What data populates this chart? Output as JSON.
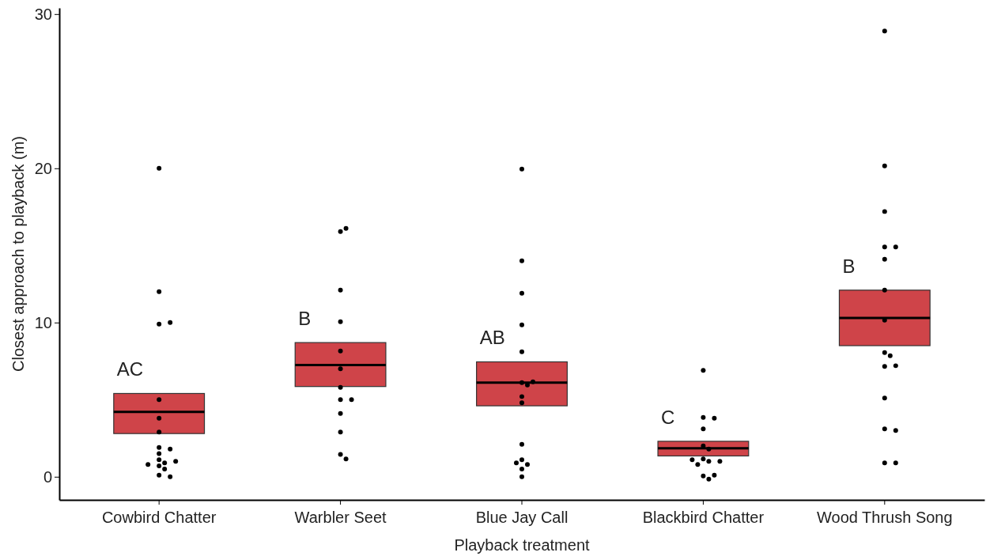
{
  "chart_data": {
    "type": "box",
    "xlabel": "Playback treatment",
    "ylabel": "Closest approach to playback (m)",
    "categories": [
      "Cowbird Chatter",
      "Warbler Seet",
      "Blue Jay Call",
      "Blackbird Chatter",
      "Wood Thrush Song"
    ],
    "ylim": [
      -1.5,
      30.4
    ],
    "yticks": [
      0,
      10,
      20,
      30
    ],
    "series": [
      {
        "color": "#cf4449",
        "boxes": [
          {
            "low": 2.8,
            "q1": 2.8,
            "median": 4.2,
            "q3": 5.4,
            "high": 5.4
          },
          {
            "low": 5.85,
            "q1": 5.85,
            "median": 7.25,
            "q3": 8.7,
            "high": 8.7
          },
          {
            "low": 4.6,
            "q1": 4.6,
            "median": 6.1,
            "q3": 7.45,
            "high": 7.45
          },
          {
            "low": 1.35,
            "q1": 1.35,
            "median": 1.85,
            "q3": 2.3,
            "high": 2.3
          },
          {
            "low": 8.5,
            "q1": 8.5,
            "median": 10.3,
            "q3": 12.1,
            "high": 12.1
          }
        ]
      },
      {
        "type": "scatter",
        "color": "#000000",
        "marker": "circle",
        "x": [
          "Cowbird Chatter",
          "Cowbird Chatter",
          "Cowbird Chatter",
          "Cowbird Chatter",
          "Cowbird Chatter",
          "Cowbird Chatter",
          "Cowbird Chatter",
          "Cowbird Chatter",
          "Cowbird Chatter",
          "Cowbird Chatter",
          "Cowbird Chatter",
          "Cowbird Chatter",
          "Cowbird Chatter",
          "Cowbird Chatter",
          "Cowbird Chatter",
          "Cowbird Chatter",
          "Cowbird Chatter",
          "Cowbird Chatter",
          "Warbler Seet",
          "Warbler Seet",
          "Warbler Seet",
          "Warbler Seet",
          "Warbler Seet",
          "Warbler Seet",
          "Warbler Seet",
          "Warbler Seet",
          "Warbler Seet",
          "Warbler Seet",
          "Warbler Seet",
          "Warbler Seet",
          "Warbler Seet",
          "Blue Jay Call",
          "Blue Jay Call",
          "Blue Jay Call",
          "Blue Jay Call",
          "Blue Jay Call",
          "Blue Jay Call",
          "Blue Jay Call",
          "Blue Jay Call",
          "Blue Jay Call",
          "Blue Jay Call",
          "Blue Jay Call",
          "Blue Jay Call",
          "Blue Jay Call",
          "Blue Jay Call",
          "Blue Jay Call",
          "Blue Jay Call",
          "Blackbird Chatter",
          "Blackbird Chatter",
          "Blackbird Chatter",
          "Blackbird Chatter",
          "Blackbird Chatter",
          "Blackbird Chatter",
          "Blackbird Chatter",
          "Blackbird Chatter",
          "Blackbird Chatter",
          "Blackbird Chatter",
          "Blackbird Chatter",
          "Blackbird Chatter",
          "Blackbird Chatter",
          "Blackbird Chatter",
          "Wood Thrush Song",
          "Wood Thrush Song",
          "Wood Thrush Song",
          "Wood Thrush Song",
          "Wood Thrush Song",
          "Wood Thrush Song",
          "Wood Thrush Song",
          "Wood Thrush Song",
          "Wood Thrush Song",
          "Wood Thrush Song",
          "Wood Thrush Song",
          "Wood Thrush Song",
          "Wood Thrush Song",
          "Wood Thrush Song",
          "Wood Thrush Song",
          "Wood Thrush Song",
          "Wood Thrush Song"
        ],
        "values": [
          20.0,
          12.0,
          9.9,
          10.0,
          5.0,
          3.8,
          2.9,
          1.9,
          1.5,
          1.8,
          1.1,
          0.7,
          0.5,
          0.9,
          0.8,
          1.0,
          0.1,
          0.0,
          15.9,
          16.1,
          12.1,
          10.05,
          8.15,
          7.0,
          5.8,
          5.0,
          5.0,
          4.1,
          2.9,
          1.45,
          1.15,
          19.95,
          14.0,
          11.9,
          9.85,
          8.1,
          6.1,
          6.15,
          5.95,
          5.2,
          4.8,
          2.1,
          1.1,
          0.8,
          0.9,
          0.5,
          0.0,
          6.9,
          3.85,
          3.8,
          3.1,
          2.0,
          1.8,
          1.15,
          1.0,
          0.8,
          1.1,
          1.0,
          0.05,
          0.1,
          -0.15,
          28.9,
          20.15,
          17.2,
          14.9,
          14.9,
          14.1,
          12.1,
          10.15,
          8.05,
          7.85,
          7.15,
          7.2,
          5.1,
          3.1,
          3.0,
          0.9,
          0.9
        ]
      }
    ],
    "annotations": [
      "AC",
      "B",
      "AB",
      "C",
      "B"
    ]
  }
}
